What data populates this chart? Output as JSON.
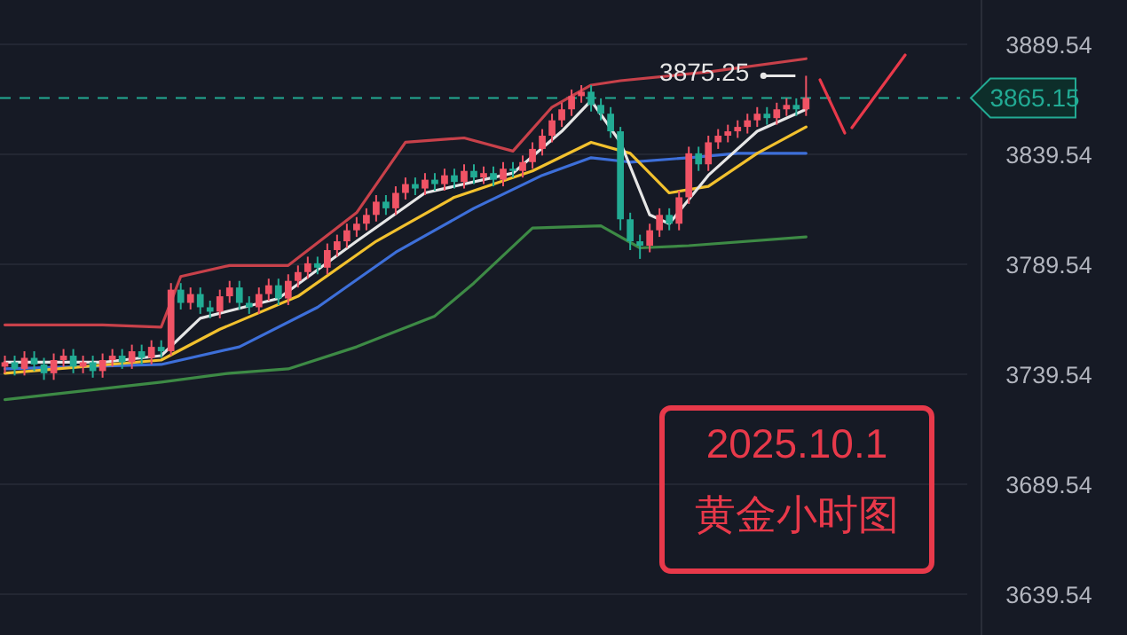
{
  "chart_data": {
    "type": "candlestick",
    "categories": [
      null,
      null,
      null,
      null,
      null,
      null,
      null,
      null,
      null,
      null,
      null,
      null,
      null,
      null,
      null,
      null,
      null,
      null,
      null,
      null,
      null,
      null,
      null,
      null,
      null,
      null,
      null,
      null,
      null,
      null,
      null,
      null,
      null,
      null,
      null,
      null,
      null,
      null,
      null,
      null,
      null,
      null,
      null,
      null,
      null,
      null,
      null,
      null,
      null,
      null,
      null,
      null,
      null,
      null,
      null,
      null,
      null,
      null,
      null,
      null,
      null,
      null,
      null,
      null,
      null,
      null,
      null,
      null,
      null,
      null,
      null,
      null,
      null,
      null,
      null,
      null,
      null,
      null,
      null,
      null,
      null,
      null,
      null,
      null,
      null,
      null,
      null,
      null,
      null,
      null,
      null,
      null,
      null,
      null,
      null,
      null,
      null,
      null,
      null
    ],
    "ohlc": [
      [
        3743,
        3748,
        3740,
        3745
      ],
      [
        3745,
        3748,
        3739,
        3742
      ],
      [
        3742,
        3750,
        3739,
        3747
      ],
      [
        3747,
        3750,
        3741,
        3744
      ],
      [
        3744,
        3747,
        3737,
        3740
      ],
      [
        3740,
        3749,
        3737,
        3746
      ],
      [
        3746,
        3751,
        3743,
        3748
      ],
      [
        3748,
        3751,
        3740,
        3743
      ],
      [
        3743,
        3748,
        3740,
        3745
      ],
      [
        3745,
        3748,
        3738,
        3741
      ],
      [
        3741,
        3749,
        3738,
        3746
      ],
      [
        3746,
        3751,
        3743,
        3748
      ],
      [
        3748,
        3751,
        3742,
        3745
      ],
      [
        3745,
        3753,
        3742,
        3750
      ],
      [
        3750,
        3753,
        3744,
        3747
      ],
      [
        3747,
        3755,
        3744,
        3752
      ],
      [
        3752,
        3755,
        3747,
        3750
      ],
      [
        3750,
        3781,
        3748,
        3778
      ],
      [
        3778,
        3781,
        3769,
        3772
      ],
      [
        3772,
        3779,
        3769,
        3776
      ],
      [
        3776,
        3779,
        3767,
        3770
      ],
      [
        3770,
        3773,
        3765,
        3768
      ],
      [
        3768,
        3778,
        3765,
        3775
      ],
      [
        3775,
        3782,
        3772,
        3779
      ],
      [
        3779,
        3782,
        3769,
        3772
      ],
      [
        3772,
        3775,
        3767,
        3770
      ],
      [
        3770,
        3779,
        3767,
        3776
      ],
      [
        3776,
        3783,
        3773,
        3780
      ],
      [
        3780,
        3783,
        3771,
        3774
      ],
      [
        3774,
        3785,
        3771,
        3782
      ],
      [
        3782,
        3789,
        3779,
        3786
      ],
      [
        3786,
        3793,
        3783,
        3790
      ],
      [
        3790,
        3793,
        3785,
        3788
      ],
      [
        3788,
        3799,
        3785,
        3796
      ],
      [
        3796,
        3803,
        3793,
        3800
      ],
      [
        3800,
        3808,
        3797,
        3805
      ],
      [
        3805,
        3811,
        3802,
        3808
      ],
      [
        3808,
        3815,
        3805,
        3812
      ],
      [
        3812,
        3821,
        3809,
        3818
      ],
      [
        3818,
        3821,
        3812,
        3815
      ],
      [
        3815,
        3825,
        3812,
        3822
      ],
      [
        3822,
        3829,
        3819,
        3826
      ],
      [
        3826,
        3829,
        3821,
        3824
      ],
      [
        3824,
        3831,
        3821,
        3828
      ],
      [
        3828,
        3831,
        3823,
        3826
      ],
      [
        3826,
        3833,
        3823,
        3830
      ],
      [
        3830,
        3833,
        3824,
        3827
      ],
      [
        3827,
        3835,
        3824,
        3832
      ],
      [
        3832,
        3835,
        3826,
        3829
      ],
      [
        3829,
        3834,
        3826,
        3831
      ],
      [
        3831,
        3834,
        3825,
        3828
      ],
      [
        3828,
        3836,
        3825,
        3833
      ],
      [
        3833,
        3836,
        3829,
        3832
      ],
      [
        3832,
        3839,
        3829,
        3836
      ],
      [
        3836,
        3845,
        3833,
        3842
      ],
      [
        3842,
        3851,
        3839,
        3848
      ],
      [
        3848,
        3858,
        3845,
        3855
      ],
      [
        3855,
        3863,
        3852,
        3860
      ],
      [
        3860,
        3869,
        3857,
        3866
      ],
      [
        3866,
        3871,
        3863,
        3868
      ],
      [
        3868,
        3871,
        3859,
        3862
      ],
      [
        3862,
        3865,
        3855,
        3858
      ],
      [
        3858,
        3861,
        3847,
        3850
      ],
      [
        3850,
        3852,
        3805,
        3810
      ],
      [
        3810,
        3813,
        3796,
        3800
      ],
      [
        3800,
        3803,
        3792,
        3798
      ],
      [
        3798,
        3808,
        3795,
        3805
      ],
      [
        3805,
        3815,
        3802,
        3812
      ],
      [
        3812,
        3815,
        3805,
        3808
      ],
      [
        3808,
        3823,
        3805,
        3820
      ],
      [
        3820,
        3843,
        3817,
        3840
      ],
      [
        3840,
        3843,
        3832,
        3835
      ],
      [
        3835,
        3848,
        3832,
        3845
      ],
      [
        3845,
        3851,
        3842,
        3848
      ],
      [
        3848,
        3853,
        3845,
        3850
      ],
      [
        3850,
        3855,
        3847,
        3852
      ],
      [
        3852,
        3858,
        3849,
        3855
      ],
      [
        3855,
        3861,
        3852,
        3858
      ],
      [
        3858,
        3861,
        3853,
        3856
      ],
      [
        3856,
        3863,
        3853,
        3860
      ],
      [
        3860,
        3865,
        3857,
        3862
      ],
      [
        3862,
        3865,
        3857,
        3860
      ],
      [
        3860,
        3875.25,
        3857,
        3865.15
      ],
      null,
      null,
      null,
      null,
      null,
      null,
      null,
      null,
      null,
      null,
      null,
      null,
      null,
      null,
      null,
      null
    ],
    "colors": [
      "#f05365",
      "#22ab94",
      "#f05365",
      "#22ab94",
      "#22ab94",
      "#f05365",
      "#f05365",
      "#22ab94",
      "#f05365",
      "#22ab94",
      "#f05365",
      "#f05365",
      "#22ab94",
      "#f05365",
      "#22ab94",
      "#f05365",
      "#22ab94",
      "#f05365",
      "#22ab94",
      "#f05365",
      "#22ab94",
      "#22ab94",
      "#f05365",
      "#f05365",
      "#22ab94",
      "#22ab94",
      "#f05365",
      "#f05365",
      "#22ab94",
      "#f05365",
      "#f05365",
      "#f05365",
      "#22ab94",
      "#f05365",
      "#f05365",
      "#f05365",
      "#f05365",
      "#f05365",
      "#f05365",
      "#22ab94",
      "#f05365",
      "#f05365",
      "#22ab94",
      "#f05365",
      "#22ab94",
      "#f05365",
      "#22ab94",
      "#f05365",
      "#22ab94",
      "#f05365",
      "#22ab94",
      "#f05365",
      "#22ab94",
      "#f05365",
      "#f05365",
      "#f05365",
      "#f05365",
      "#f05365",
      "#f05365",
      "#f05365",
      "#22ab94",
      "#22ab94",
      "#22ab94",
      "#22ab94",
      "#22ab94",
      "#22ab94",
      "#f05365",
      "#f05365",
      "#22ab94",
      "#f05365",
      "#f05365",
      "#22ab94",
      "#f05365",
      "#f05365",
      "#f05365",
      "#f05365",
      "#f05365",
      "#f05365",
      "#22ab94",
      "#f05365",
      "#f05365",
      "#22ab94",
      "#f05365",
      null,
      null,
      null,
      null,
      null,
      null,
      null,
      null,
      null,
      null,
      null,
      null,
      null,
      null,
      null,
      null
    ],
    "series": [
      {
        "type": "line",
        "color": "#c8414a",
        "values": [
          3762,
          null,
          null,
          null,
          null,
          null,
          null,
          null,
          null,
          null,
          3762,
          null,
          null,
          null,
          null,
          null,
          3761,
          null,
          3784,
          null,
          null,
          null,
          null,
          3789,
          null,
          null,
          null,
          null,
          null,
          3789,
          null,
          null,
          null,
          null,
          null,
          null,
          3813,
          null,
          null,
          null,
          null,
          3845,
          null,
          null,
          null,
          null,
          null,
          3847,
          null,
          null,
          null,
          null,
          3841,
          null,
          null,
          null,
          3861,
          null,
          null,
          null,
          3871,
          null,
          null,
          3873,
          null,
          null,
          null,
          null,
          null,
          null,
          null,
          null,
          3877,
          null,
          null,
          null,
          null,
          null,
          null,
          null,
          null,
          null,
          3883,
          null,
          null,
          null,
          null,
          null,
          null,
          null,
          null,
          null,
          null,
          null,
          null,
          null,
          null,
          null,
          null
        ]
      },
      {
        "type": "line",
        "color": "#3d8a45",
        "values": [
          3728,
          null,
          null,
          null,
          null,
          null,
          null,
          null,
          null,
          null,
          null,
          null,
          null,
          null,
          null,
          null,
          3736,
          null,
          null,
          null,
          null,
          null,
          null,
          3740,
          null,
          null,
          null,
          null,
          null,
          3742,
          null,
          null,
          null,
          null,
          null,
          null,
          3752,
          null,
          null,
          null,
          null,
          null,
          null,
          null,
          3766,
          null,
          null,
          null,
          3781,
          null,
          null,
          null,
          null,
          null,
          3806,
          null,
          null,
          null,
          null,
          null,
          null,
          3807,
          null,
          null,
          null,
          3797,
          null,
          null,
          null,
          null,
          3798,
          null,
          null,
          null,
          null,
          null,
          null,
          null,
          null,
          null,
          null,
          null,
          3802,
          null,
          null,
          null,
          null,
          null,
          null,
          null,
          null,
          null,
          null,
          null,
          null,
          null,
          null,
          null,
          null
        ]
      },
      {
        "type": "line",
        "color": "#3d6fd9",
        "values": [
          3742,
          null,
          null,
          null,
          null,
          null,
          null,
          null,
          null,
          null,
          null,
          null,
          null,
          null,
          null,
          null,
          3744,
          null,
          null,
          null,
          null,
          null,
          null,
          null,
          3752,
          null,
          null,
          null,
          null,
          null,
          null,
          null,
          3770,
          null,
          null,
          null,
          null,
          null,
          null,
          null,
          3795,
          null,
          null,
          null,
          null,
          null,
          null,
          null,
          3815,
          null,
          null,
          null,
          null,
          null,
          null,
          3830,
          null,
          null,
          null,
          null,
          3838,
          null,
          null,
          null,
          3836,
          null,
          null,
          null,
          null,
          null,
          3838,
          null,
          null,
          null,
          null,
          3840,
          null,
          null,
          null,
          null,
          null,
          null,
          3840,
          null,
          null,
          null,
          null,
          null,
          null,
          null,
          null,
          null,
          null,
          null,
          null,
          null,
          null,
          null,
          null
        ]
      },
      {
        "type": "line",
        "color": "#f2c12e",
        "values": [
          3740,
          null,
          null,
          null,
          null,
          null,
          null,
          null,
          null,
          null,
          null,
          null,
          null,
          null,
          null,
          null,
          3746,
          null,
          null,
          null,
          null,
          null,
          3760,
          null,
          null,
          null,
          null,
          null,
          null,
          null,
          3775,
          null,
          null,
          null,
          null,
          null,
          null,
          null,
          3800,
          null,
          null,
          null,
          null,
          null,
          null,
          null,
          3820,
          null,
          null,
          null,
          null,
          null,
          null,
          null,
          3832,
          null,
          null,
          null,
          null,
          null,
          3845,
          null,
          null,
          null,
          3840,
          null,
          null,
          null,
          3822,
          null,
          null,
          null,
          3825,
          null,
          null,
          null,
          null,
          3840,
          null,
          null,
          null,
          null,
          3852,
          null,
          null,
          null,
          null,
          null,
          null,
          null,
          null,
          null,
          null,
          null,
          null,
          null,
          null,
          null,
          null
        ]
      },
      {
        "type": "line",
        "color": "#e6e6e6",
        "values": [
          3745,
          null,
          null,
          null,
          null,
          null,
          null,
          null,
          null,
          null,
          3745,
          null,
          null,
          null,
          null,
          null,
          3748,
          null,
          null,
          null,
          3765,
          null,
          null,
          null,
          null,
          null,
          null,
          null,
          3774,
          null,
          null,
          null,
          null,
          null,
          null,
          null,
          3800,
          null,
          null,
          null,
          null,
          null,
          null,
          3822,
          null,
          null,
          null,
          null,
          null,
          null,
          null,
          null,
          3831,
          null,
          null,
          null,
          null,
          3850,
          null,
          null,
          3864,
          null,
          null,
          3845,
          null,
          null,
          3812,
          null,
          3808,
          null,
          null,
          null,
          3830,
          null,
          null,
          null,
          null,
          3850,
          null,
          null,
          null,
          null,
          3860,
          null,
          null,
          null,
          null,
          null,
          null,
          null,
          null,
          null,
          null,
          null,
          null,
          null,
          null,
          null,
          null
        ]
      }
    ],
    "ylim": [
      3621,
      3909.7
    ],
    "yticks": [
      3639.54,
      3689.54,
      3739.54,
      3789.54,
      3839.54,
      3889.54
    ],
    "tick_labels": "y",
    "grid": "y",
    "ref_lines": [
      {
        "axis": "y",
        "value": 3865.15,
        "label": "3865.15",
        "color": "#22ab94",
        "line_style": "dashed"
      }
    ],
    "annotations": [
      {
        "text": "3875.25",
        "y": 3875.25
      },
      "2025.10.1",
      "黄金小时图"
    ]
  }
}
